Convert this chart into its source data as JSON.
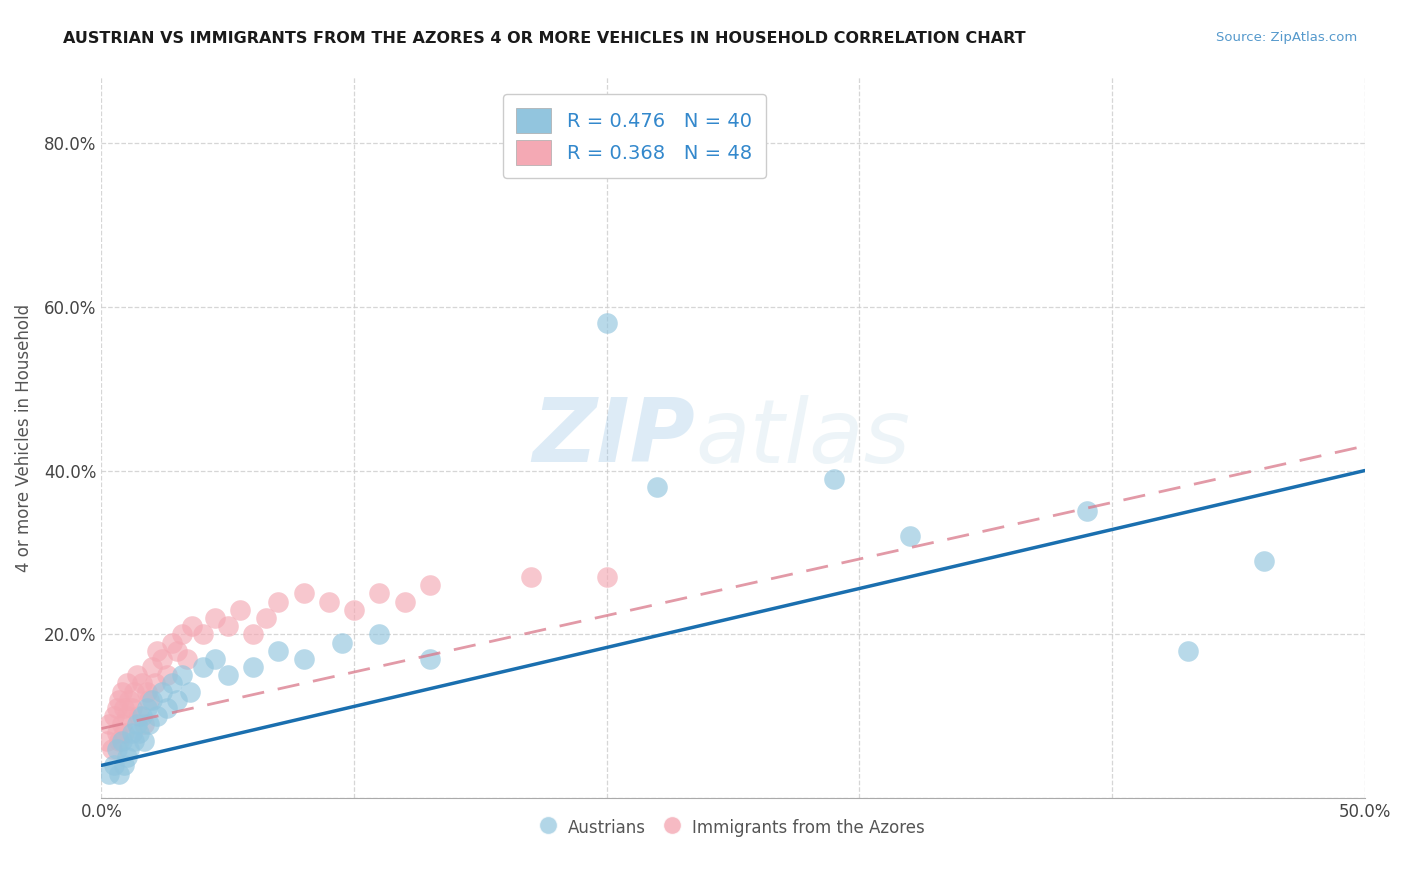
{
  "title": "AUSTRIAN VS IMMIGRANTS FROM THE AZORES 4 OR MORE VEHICLES IN HOUSEHOLD CORRELATION CHART",
  "source": "Source: ZipAtlas.com",
  "ylabel": "4 or more Vehicles in Household",
  "xlim": [
    0.0,
    0.5
  ],
  "ylim": [
    0.0,
    0.88
  ],
  "xticks": [
    0.0,
    0.1,
    0.2,
    0.3,
    0.4,
    0.5
  ],
  "xticklabels": [
    "0.0%",
    "",
    "",
    "",
    "",
    "50.0%"
  ],
  "yticks": [
    0.0,
    0.2,
    0.4,
    0.6,
    0.8
  ],
  "yticklabels": [
    "",
    "20.0%",
    "40.0%",
    "60.0%",
    "80.0%"
  ],
  "legend1_label": "R = 0.476   N = 40",
  "legend2_label": "R = 0.368   N = 48",
  "legend_bottom": [
    "Austrians",
    "Immigrants from the Azores"
  ],
  "color_blue": "#92c5de",
  "color_pink": "#f4a9b4",
  "color_line_blue": "#1a6faf",
  "color_line_pink": "#d9788a",
  "watermark_zip": "ZIP",
  "watermark_atlas": "atlas",
  "blue_scatter_x": [
    0.003,
    0.005,
    0.006,
    0.007,
    0.008,
    0.009,
    0.01,
    0.011,
    0.012,
    0.013,
    0.014,
    0.015,
    0.016,
    0.017,
    0.018,
    0.019,
    0.02,
    0.022,
    0.024,
    0.026,
    0.028,
    0.03,
    0.032,
    0.035,
    0.04,
    0.045,
    0.05,
    0.06,
    0.07,
    0.08,
    0.095,
    0.11,
    0.13,
    0.2,
    0.22,
    0.29,
    0.32,
    0.39,
    0.43,
    0.46
  ],
  "blue_scatter_y": [
    0.03,
    0.04,
    0.06,
    0.03,
    0.07,
    0.04,
    0.05,
    0.06,
    0.08,
    0.07,
    0.09,
    0.08,
    0.1,
    0.07,
    0.11,
    0.09,
    0.12,
    0.1,
    0.13,
    0.11,
    0.14,
    0.12,
    0.15,
    0.13,
    0.16,
    0.17,
    0.15,
    0.16,
    0.18,
    0.17,
    0.19,
    0.2,
    0.17,
    0.58,
    0.38,
    0.39,
    0.32,
    0.35,
    0.18,
    0.29
  ],
  "pink_scatter_x": [
    0.002,
    0.003,
    0.004,
    0.005,
    0.006,
    0.006,
    0.007,
    0.007,
    0.008,
    0.008,
    0.009,
    0.009,
    0.01,
    0.01,
    0.011,
    0.012,
    0.013,
    0.014,
    0.015,
    0.016,
    0.017,
    0.018,
    0.019,
    0.02,
    0.021,
    0.022,
    0.024,
    0.026,
    0.028,
    0.03,
    0.032,
    0.034,
    0.036,
    0.04,
    0.045,
    0.05,
    0.055,
    0.06,
    0.065,
    0.07,
    0.08,
    0.09,
    0.1,
    0.11,
    0.12,
    0.13,
    0.17,
    0.2
  ],
  "pink_scatter_y": [
    0.07,
    0.09,
    0.06,
    0.1,
    0.08,
    0.11,
    0.07,
    0.12,
    0.09,
    0.13,
    0.08,
    0.11,
    0.1,
    0.14,
    0.12,
    0.11,
    0.13,
    0.15,
    0.1,
    0.14,
    0.09,
    0.13,
    0.12,
    0.16,
    0.14,
    0.18,
    0.17,
    0.15,
    0.19,
    0.18,
    0.2,
    0.17,
    0.21,
    0.2,
    0.22,
    0.21,
    0.23,
    0.2,
    0.22,
    0.24,
    0.25,
    0.24,
    0.23,
    0.25,
    0.24,
    0.26,
    0.27,
    0.27
  ],
  "grid_color": "#cccccc",
  "background_color": "#ffffff",
  "blue_line_x": [
    0.0,
    0.5
  ],
  "blue_line_y": [
    0.04,
    0.4
  ],
  "pink_line_x": [
    0.0,
    0.5
  ],
  "pink_line_y": [
    0.085,
    0.43
  ]
}
